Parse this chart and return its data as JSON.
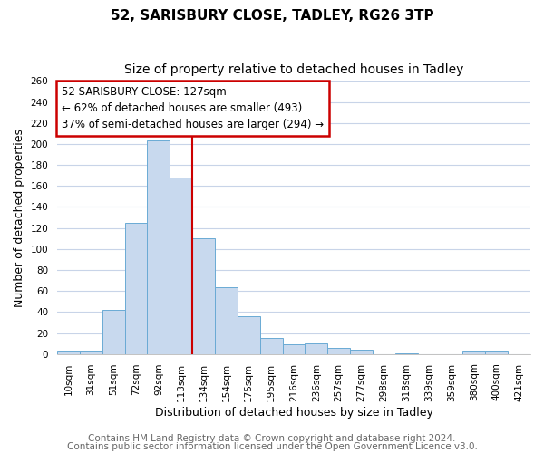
{
  "title": "52, SARISBURY CLOSE, TADLEY, RG26 3TP",
  "subtitle": "Size of property relative to detached houses in Tadley",
  "xlabel": "Distribution of detached houses by size in Tadley",
  "ylabel": "Number of detached properties",
  "bar_labels": [
    "10sqm",
    "31sqm",
    "51sqm",
    "72sqm",
    "92sqm",
    "113sqm",
    "134sqm",
    "154sqm",
    "175sqm",
    "195sqm",
    "216sqm",
    "236sqm",
    "257sqm",
    "277sqm",
    "298sqm",
    "318sqm",
    "339sqm",
    "359sqm",
    "380sqm",
    "400sqm",
    "421sqm"
  ],
  "bar_values": [
    3,
    3,
    42,
    125,
    203,
    168,
    110,
    64,
    36,
    15,
    9,
    10,
    6,
    4,
    0,
    1,
    0,
    0,
    3,
    3,
    0
  ],
  "bar_color": "#c8d9ee",
  "bar_edge_color": "#6aaad4",
  "vline_color": "#cc0000",
  "vline_position": 5.5,
  "annotation_line1": "52 SARISBURY CLOSE: 127sqm",
  "annotation_line2": "← 62% of detached houses are smaller (493)",
  "annotation_line3": "37% of semi-detached houses are larger (294) →",
  "annotation_box_facecolor": "#ffffff",
  "annotation_box_edgecolor": "#cc0000",
  "ylim": [
    0,
    260
  ],
  "yticks": [
    0,
    20,
    40,
    60,
    80,
    100,
    120,
    140,
    160,
    180,
    200,
    220,
    240,
    260
  ],
  "footer_line1": "Contains HM Land Registry data © Crown copyright and database right 2024.",
  "footer_line2": "Contains public sector information licensed under the Open Government Licence v3.0.",
  "fig_background": "#ffffff",
  "plot_background": "#ffffff",
  "grid_color": "#c8d4e8",
  "title_fontsize": 11,
  "subtitle_fontsize": 10,
  "axis_label_fontsize": 9,
  "tick_fontsize": 7.5,
  "annotation_fontsize": 8.5,
  "footer_fontsize": 7.5
}
